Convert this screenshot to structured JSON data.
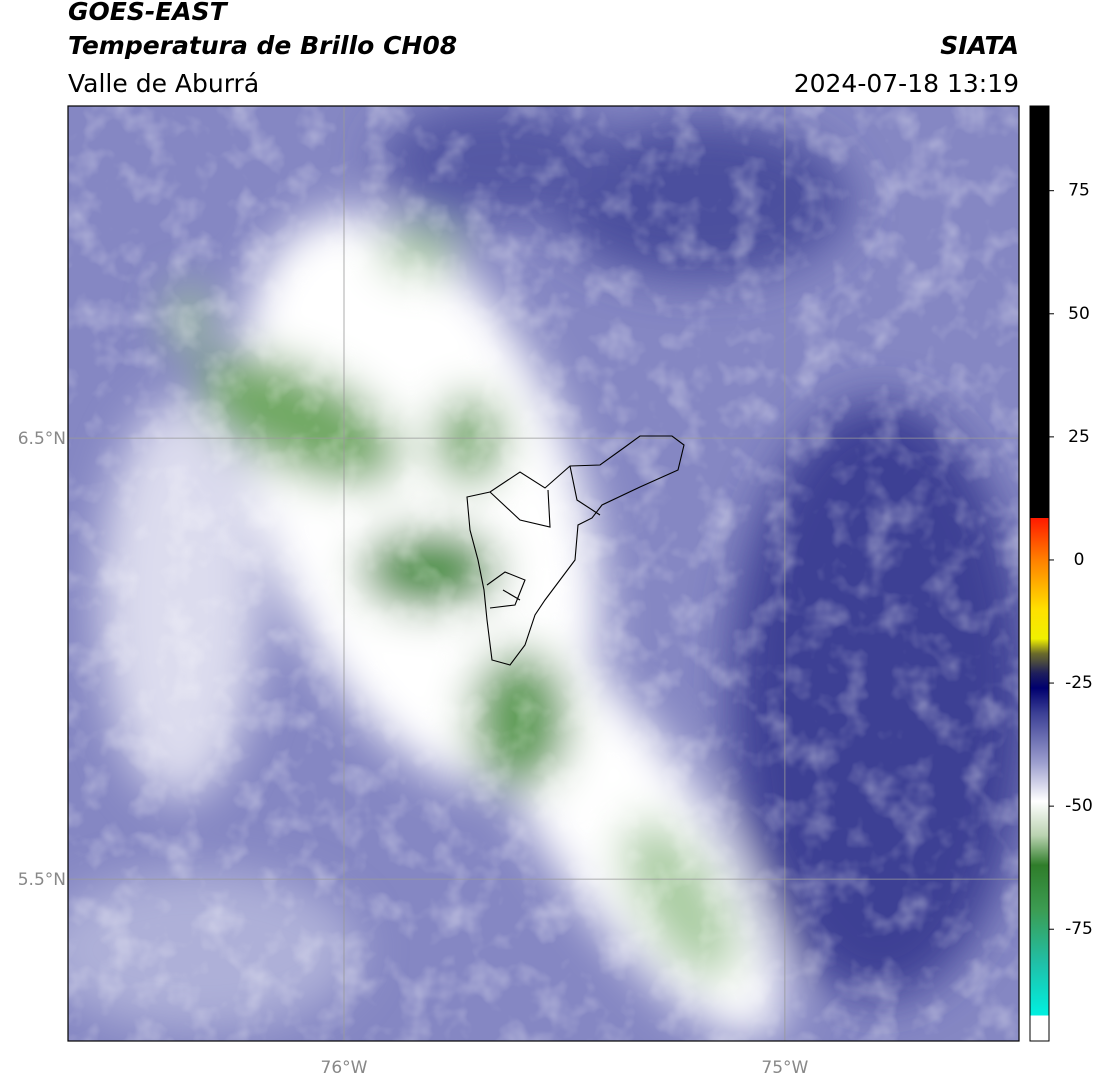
{
  "header": {
    "title": "GOES-EAST",
    "subtitle": "Temperatura de Brillo CH08",
    "region": "Valle de Aburrá",
    "source": "SIATA",
    "datetime": "2024-07-18 13:19"
  },
  "map": {
    "extent": {
      "lon": [
        -76.626,
        -74.469
      ],
      "lat": [
        5.133,
        7.253
      ]
    },
    "lat_lines": [
      {
        "value": 6.5,
        "label": "6.5°N"
      },
      {
        "value": 5.5,
        "label": "5.5°N"
      }
    ],
    "lon_lines": [
      {
        "value": -76,
        "label": "76°W"
      },
      {
        "value": -75,
        "label": "75°W"
      }
    ]
  },
  "colorbar": {
    "range": [
      -97.7,
      92.2
    ],
    "ticks": [
      75,
      50,
      25,
      0,
      -25,
      -50,
      -75
    ],
    "stops": [
      {
        "value": 92.2,
        "color": "#000000"
      },
      {
        "value": 8.5,
        "color": "#000000"
      },
      {
        "value": 8.5,
        "color": "#ff1a00"
      },
      {
        "value": 0,
        "color": "#ff8000"
      },
      {
        "value": -10,
        "color": "#ffe000"
      },
      {
        "value": -16,
        "color": "#f0f000"
      },
      {
        "value": -19,
        "color": "#6b6b2a"
      },
      {
        "value": -23,
        "color": "#1e1e5c"
      },
      {
        "value": -26,
        "color": "#00006e"
      },
      {
        "value": -31,
        "color": "#3a3e94"
      },
      {
        "value": -41,
        "color": "#9a9ccd"
      },
      {
        "value": -49,
        "color": "#ffffff"
      },
      {
        "value": -56,
        "color": "#b9d2b0"
      },
      {
        "value": -62,
        "color": "#2f7d2a"
      },
      {
        "value": -71,
        "color": "#3c9c52"
      },
      {
        "value": -82,
        "color": "#20c0a8"
      },
      {
        "value": -92.5,
        "color": "#00f0e0"
      },
      {
        "value": -92.5,
        "color": "#ffffff"
      },
      {
        "value": -97.7,
        "color": "#ffffff"
      }
    ]
  }
}
